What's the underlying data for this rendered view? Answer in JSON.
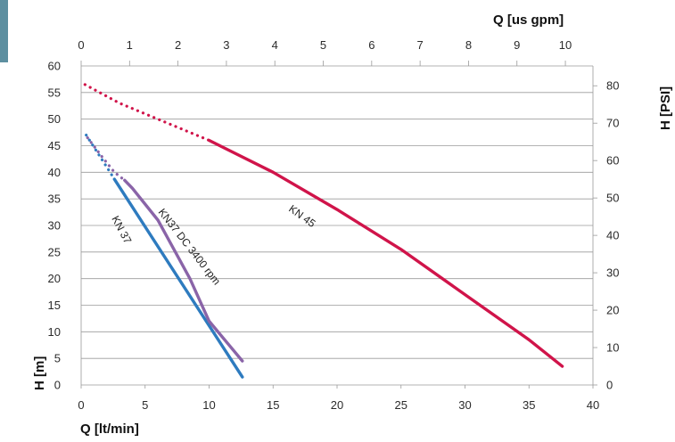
{
  "colors": {
    "kn45": "#d0144a",
    "kn37": "#2e7bbf",
    "kn37dc": "#8a64a8",
    "grid": "#9a9a9a",
    "tab": "#5d8fa0"
  },
  "chart_data": {
    "type": "line",
    "x_bottom_label": "Q [lt/min]",
    "x_top_label": "Q [us gpm]",
    "y_left_label": "H [m]",
    "y_right_label": "H [PSI]",
    "x_bottom_range": [
      0,
      40
    ],
    "x_top_range": [
      0,
      10.57
    ],
    "y_left_range": [
      0,
      60
    ],
    "y_right_range": [
      0,
      85.3
    ],
    "x_bottom_ticks": [
      "0",
      "5",
      "10",
      "15",
      "20",
      "25",
      "30",
      "35",
      "40"
    ],
    "x_top_ticks": [
      "0",
      "1",
      "2",
      "3",
      "4",
      "5",
      "6",
      "7",
      "8",
      "9",
      "10"
    ],
    "y_left_ticks": [
      "0",
      "5",
      "10",
      "15",
      "20",
      "25",
      "30",
      "35",
      "40",
      "45",
      "50",
      "55",
      "60"
    ],
    "y_right_ticks": [
      "0",
      "10",
      "20",
      "30",
      "40",
      "50",
      "60",
      "70",
      "80"
    ],
    "grid": true,
    "series": [
      {
        "name": "KN 45",
        "color_key": "kn45",
        "dotted": [
          [
            0.3,
            56.5
          ],
          [
            3,
            53
          ],
          [
            6,
            50
          ],
          [
            10,
            46
          ]
        ],
        "solid": [
          [
            10,
            46
          ],
          [
            15,
            40
          ],
          [
            20,
            33
          ],
          [
            25,
            25.5
          ],
          [
            30,
            17
          ],
          [
            35,
            8.5
          ],
          [
            37.6,
            3.5
          ]
        ]
      },
      {
        "name": "KN 37",
        "color_key": "kn37",
        "dotted": [
          [
            0.4,
            47
          ],
          [
            1.2,
            44
          ],
          [
            2,
            41
          ],
          [
            2.6,
            38.7
          ]
        ],
        "solid": [
          [
            2.6,
            38.7
          ],
          [
            12.6,
            1.5
          ]
        ]
      },
      {
        "name": "KN37 DC 3400 rpm",
        "color_key": "kn37dc",
        "dotted": [
          [
            0.5,
            46.5
          ],
          [
            1.6,
            43
          ],
          [
            2.6,
            40
          ],
          [
            3.4,
            38.5
          ]
        ],
        "solid": [
          [
            3.4,
            38.5
          ],
          [
            4,
            37
          ],
          [
            6,
            31
          ],
          [
            8.5,
            20
          ],
          [
            10,
            12
          ],
          [
            12.6,
            4.5
          ]
        ]
      }
    ]
  }
}
